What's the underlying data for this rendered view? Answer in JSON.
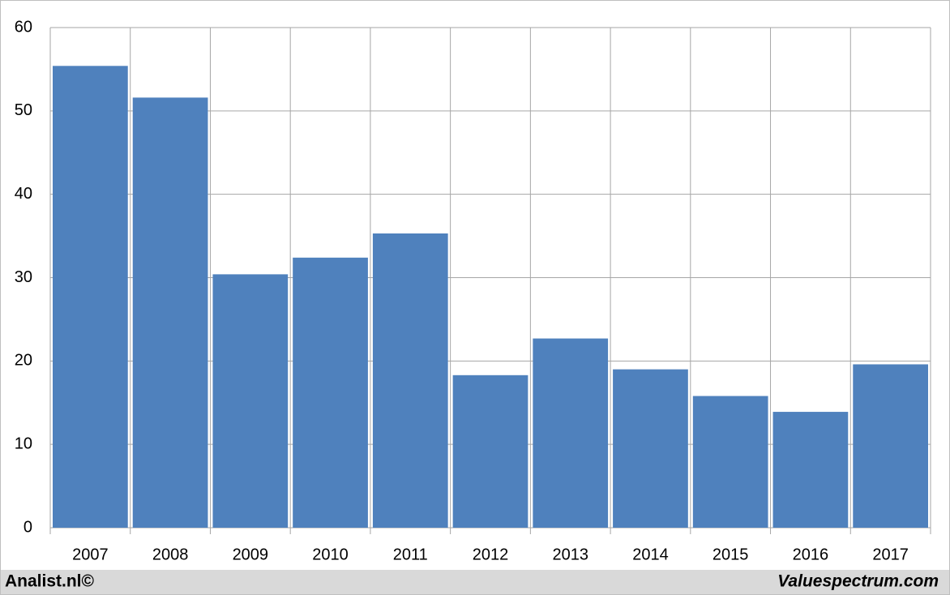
{
  "chart_data": {
    "type": "bar",
    "categories": [
      "2007",
      "2008",
      "2009",
      "2010",
      "2011",
      "2012",
      "2013",
      "2014",
      "2015",
      "2016",
      "2017"
    ],
    "values": [
      55.4,
      51.6,
      30.4,
      32.4,
      35.3,
      18.3,
      22.7,
      19.0,
      15.8,
      13.9,
      19.6
    ],
    "color": "#4f81bd",
    "ylim": [
      0,
      60
    ],
    "yticks": [
      0,
      10,
      20,
      30,
      40,
      50,
      60
    ],
    "grid": true
  },
  "footer": {
    "left": "Analist.nl©",
    "right": "Valuespectrum.com"
  }
}
